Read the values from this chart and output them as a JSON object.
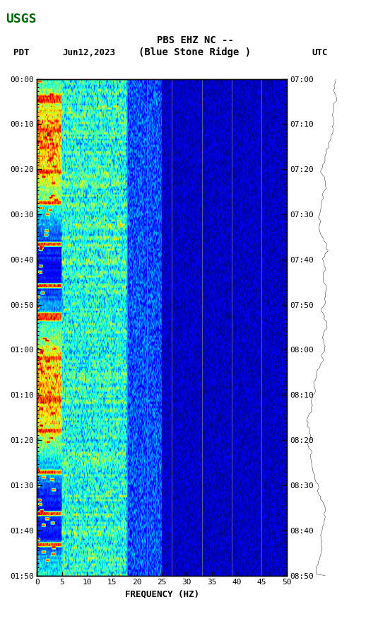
{
  "title_line1": "PBS EHZ NC --",
  "title_line2": "(Blue Stone Ridge )",
  "date_label": "Jun12,2023",
  "left_tz": "PDT",
  "right_tz": "UTC",
  "left_times": [
    "00:00",
    "00:10",
    "00:20",
    "00:30",
    "00:40",
    "00:50",
    "01:00",
    "01:10",
    "01:20",
    "01:30",
    "01:40",
    "01:50"
  ],
  "right_times": [
    "07:00",
    "07:10",
    "07:20",
    "07:30",
    "07:40",
    "07:50",
    "08:00",
    "08:10",
    "08:20",
    "08:30",
    "08:40",
    "08:50"
  ],
  "freq_label": "FREQUENCY (HZ)",
  "freq_ticks": [
    0,
    5,
    10,
    15,
    20,
    25,
    30,
    35,
    40,
    45,
    50
  ],
  "freq_grid_lines": [
    18,
    22,
    27,
    33,
    39,
    45
  ],
  "xmin": 0,
  "xmax": 50,
  "background_color": "#ffffff",
  "n_time_steps": 240,
  "n_freq_steps": 500
}
